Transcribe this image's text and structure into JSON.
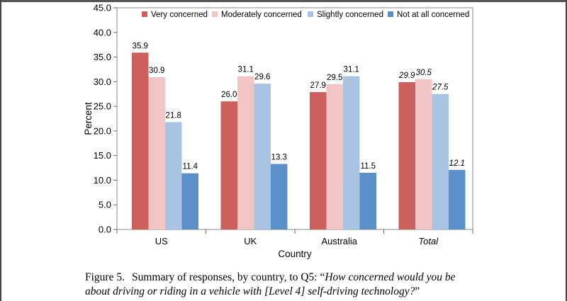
{
  "chart_data": {
    "type": "bar",
    "categories": [
      "US",
      "UK",
      "Australia",
      "Total"
    ],
    "italic_categories": [
      "Total"
    ],
    "series": [
      {
        "name": "Very concerned",
        "color": "#cd5f5d",
        "values": [
          35.9,
          26.0,
          27.9,
          29.9
        ]
      },
      {
        "name": "Moderately concerned",
        "color": "#f1c5c4",
        "values": [
          30.9,
          31.1,
          29.5,
          30.5
        ]
      },
      {
        "name": "Slightly concerned",
        "color": "#a9c4e3",
        "values": [
          21.8,
          29.6,
          31.1,
          27.5
        ]
      },
      {
        "name": "Not at all concerned",
        "color": "#5b8fc7",
        "values": [
          11.4,
          13.3,
          11.5,
          12.1
        ]
      }
    ],
    "value_labels": [
      [
        "35.9",
        "30.9",
        "21.8",
        "11.4"
      ],
      [
        "26.0",
        "31.1",
        "29.6",
        "13.3"
      ],
      [
        "27.9",
        "29.5",
        "31.1",
        "11.5"
      ],
      [
        "29.9",
        "30.5",
        "27.5",
        "12.1"
      ]
    ],
    "xlabel": "Country",
    "ylabel": "Percent",
    "ylim": [
      0,
      45
    ],
    "ytick_step": 5,
    "ytick_labels": [
      "0.0",
      "5.0",
      "10.0",
      "15.0",
      "20.0",
      "25.0",
      "30.0",
      "35.0",
      "40.0",
      "45.0"
    ],
    "grid": false,
    "legend_position": "top"
  },
  "caption": {
    "label": "Figure 5.",
    "text": "Summary of responses, by country, to Q5: “",
    "question_line1": "How concerned would you be",
    "question_line2": "about driving or riding in a vehicle with [Level 4] self-driving technology?",
    "close_quote": "”"
  }
}
